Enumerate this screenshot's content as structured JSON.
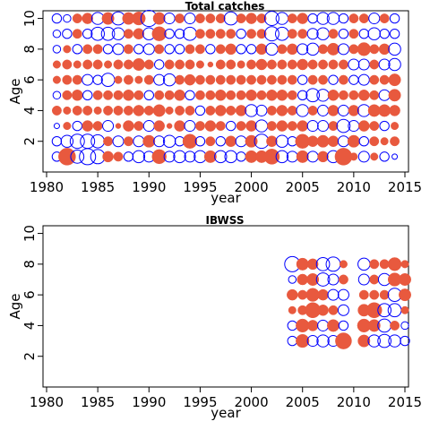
{
  "chart_data": [
    {
      "type": "scatter",
      "subtype": "bubble-residuals",
      "title": "Total catches",
      "xlabel": "year",
      "ylabel": "Age",
      "xlim": [
        1980,
        2015
      ],
      "ylim": [
        0,
        10.5
      ],
      "xticks": [
        1980,
        1985,
        1990,
        1995,
        2000,
        2005,
        2010,
        2015
      ],
      "yticks": [
        2,
        4,
        6,
        8,
        10
      ],
      "positive_color": "#E8593E",
      "negative_color": "#0000FF",
      "x": [
        1981,
        1982,
        1983,
        1984,
        1985,
        1986,
        1987,
        1988,
        1989,
        1990,
        1991,
        1992,
        1993,
        1994,
        1995,
        1996,
        1997,
        1998,
        1999,
        2000,
        2001,
        2002,
        2003,
        2004,
        2005,
        2006,
        2007,
        2008,
        2009,
        2010,
        2011,
        2012,
        2013,
        2014
      ],
      "ages": [
        1,
        2,
        3,
        4,
        5,
        6,
        7,
        8,
        9,
        10
      ],
      "residuals": [
        [
          -0.3,
          1.0,
          -0.6,
          -0.9,
          -0.7,
          0.4,
          0.3,
          -0.3,
          -0.5,
          -0.4,
          0.7,
          -0.4,
          -0.5,
          -0.4,
          -0.5,
          0.5,
          -0.5,
          -0.5,
          -0.3,
          0.5,
          0.5,
          0.8,
          -0.5,
          -0.4,
          0.5,
          -0.4,
          0.4,
          -0.5,
          1.0,
          0.2,
          -0.4,
          0.2,
          -0.3,
          -0.1
        ],
        [
          -0.3,
          -0.5,
          -0.7,
          -0.7,
          -0.6,
          0.3,
          -0.4,
          0.3,
          -0.4,
          0.5,
          -0.4,
          -0.5,
          -0.3,
          0.7,
          -0.3,
          0.3,
          -0.3,
          0.4,
          -0.4,
          0.5,
          -0.7,
          0.4,
          -0.5,
          -0.3,
          0.7,
          0.4,
          0.5,
          0.4,
          -0.4,
          0.5,
          -0.3,
          0.3,
          0.2,
          0.3
        ],
        [
          -0.1,
          0.2,
          -0.3,
          0.4,
          0.3,
          -0.4,
          0.1,
          0.4,
          0.3,
          -0.4,
          0.4,
          0.1,
          0.4,
          -0.4,
          0.3,
          0.4,
          0.3,
          -0.3,
          0.3,
          0.4,
          -0.5,
          0.3,
          0.4,
          0.3,
          0.4,
          -0.4,
          -0.4,
          0.3,
          -0.6,
          -0.4,
          0.4,
          0.3,
          -0.3,
          0.2
        ],
        [
          0.3,
          0.2,
          0.3,
          0.3,
          0.2,
          0.3,
          0.3,
          0.3,
          0.4,
          0.3,
          0.5,
          0.2,
          0.3,
          0.3,
          -0.3,
          0.3,
          0.4,
          0.3,
          0.4,
          -0.5,
          -0.4,
          0.3,
          0.4,
          0.3,
          -0.5,
          0.3,
          -0.4,
          0.4,
          -0.4,
          0.4,
          -0.5,
          0.5,
          0.5,
          0.4
        ],
        [
          -0.2,
          0.3,
          0.4,
          -0.3,
          0.3,
          0.3,
          0.3,
          0.4,
          0.3,
          -0.3,
          0.3,
          0.3,
          0.4,
          -0.3,
          0.3,
          0.3,
          0.4,
          0.3,
          0.3,
          0.4,
          0.3,
          0.4,
          0.4,
          0.3,
          -0.3,
          -0.6,
          -0.5,
          0.4,
          0.3,
          0.3,
          0.4,
          0.3,
          -0.4,
          0.5
        ],
        [
          0.2,
          0.3,
          0.3,
          -0.4,
          -0.3,
          -0.6,
          0.2,
          0.3,
          0.2,
          0.3,
          -0.4,
          -0.5,
          0.3,
          0.4,
          0.3,
          0.3,
          0.3,
          0.3,
          0.3,
          0.3,
          0.3,
          0.3,
          0.3,
          0.3,
          -0.3,
          0.3,
          0.3,
          -0.3,
          0.3,
          -0.3,
          -0.4,
          0.3,
          0.3,
          0.5
        ],
        [
          0.2,
          0.3,
          0.2,
          0.3,
          0.3,
          0.2,
          0.3,
          0.3,
          0.5,
          0.3,
          -0.3,
          0.3,
          0.3,
          0.3,
          0.2,
          0.1,
          0.3,
          0.3,
          0.2,
          0.3,
          0.4,
          0.3,
          0.3,
          0.3,
          0.4,
          0.3,
          0.3,
          0.3,
          0.3,
          -0.4,
          -0.4,
          0.3,
          -0.4,
          -0.5
        ],
        [
          -0.2,
          0.2,
          -0.3,
          0.3,
          0.3,
          -0.3,
          -0.4,
          0.3,
          -0.3,
          -0.4,
          0.3,
          -0.3,
          -0.3,
          0.3,
          0.3,
          -0.3,
          0.3,
          0.4,
          -0.3,
          -0.3,
          0.4,
          -0.5,
          0.3,
          0.4,
          -0.4,
          -0.5,
          0.3,
          0.5,
          -0.4,
          0.3,
          0.6,
          0.3,
          0.4,
          -0.5
        ],
        [
          -0.2,
          -0.3,
          0.3,
          -0.3,
          -0.6,
          -0.6,
          -0.5,
          0.3,
          0.4,
          -0.5,
          0.7,
          -0.3,
          -0.3,
          -0.6,
          0.3,
          0.3,
          0.3,
          0.3,
          -0.3,
          0.3,
          0.3,
          -0.7,
          -0.6,
          0.3,
          0.3,
          -0.4,
          -0.5,
          0.3,
          -0.3,
          0.3,
          -0.3,
          -0.5,
          -0.3,
          -0.3
        ],
        [
          -0.3,
          -0.2,
          0.3,
          0.4,
          -0.5,
          0.5,
          -0.6,
          0.5,
          0.6,
          -0.9,
          0.5,
          -0.4,
          0.3,
          -0.4,
          0.3,
          0.3,
          0.3,
          -0.6,
          0.3,
          0.4,
          0.3,
          -0.7,
          -0.5,
          0.3,
          0.4,
          -0.3,
          -0.5,
          -0.5,
          -0.3,
          0.3,
          0.3,
          -0.4,
          0.3,
          -0.3
        ]
      ]
    },
    {
      "type": "scatter",
      "subtype": "bubble-residuals",
      "title": "IBWSS",
      "xlabel": "year",
      "ylabel": "Age",
      "xlim": [
        1980,
        2015
      ],
      "ylim": [
        0,
        10.5
      ],
      "xticks": [
        1980,
        1985,
        1990,
        1995,
        2000,
        2005,
        2010,
        2015
      ],
      "yticks": [
        2,
        4,
        6,
        8,
        10
      ],
      "positive_color": "#E8593E",
      "negative_color": "#0000FF",
      "x": [
        2004,
        2005,
        2006,
        2007,
        2008,
        2009,
        2011,
        2012,
        2013,
        2014,
        2015
      ],
      "ages": [
        3,
        4,
        5,
        6,
        7,
        8
      ],
      "residuals": [
        [
          -0.3,
          0.6,
          -0.4,
          -0.5,
          -0.4,
          0.9,
          0.5,
          -0.5,
          -0.6,
          -0.5,
          -0.3
        ],
        [
          -0.3,
          0.6,
          0.4,
          -0.4,
          0.5,
          -0.3,
          0.6,
          0.5,
          -0.6,
          0.3,
          -0.2
        ],
        [
          0.2,
          0.3,
          0.8,
          0.4,
          0.3,
          -0.4,
          0.5,
          0.8,
          -0.6,
          -0.6,
          0.2
        ],
        [
          0.4,
          0.3,
          0.6,
          0.4,
          -0.4,
          -0.4,
          0.3,
          0.3,
          0.3,
          -0.6,
          0.5
        ],
        [
          -0.2,
          0.4,
          0.5,
          -0.6,
          -0.4,
          0.3,
          -0.4,
          0.3,
          -0.5,
          0.6,
          0.5
        ],
        [
          -0.8,
          0.5,
          0.4,
          -0.6,
          -0.7,
          0.2,
          -0.5,
          0.3,
          0.3,
          0.6,
          0.2
        ]
      ]
    }
  ]
}
